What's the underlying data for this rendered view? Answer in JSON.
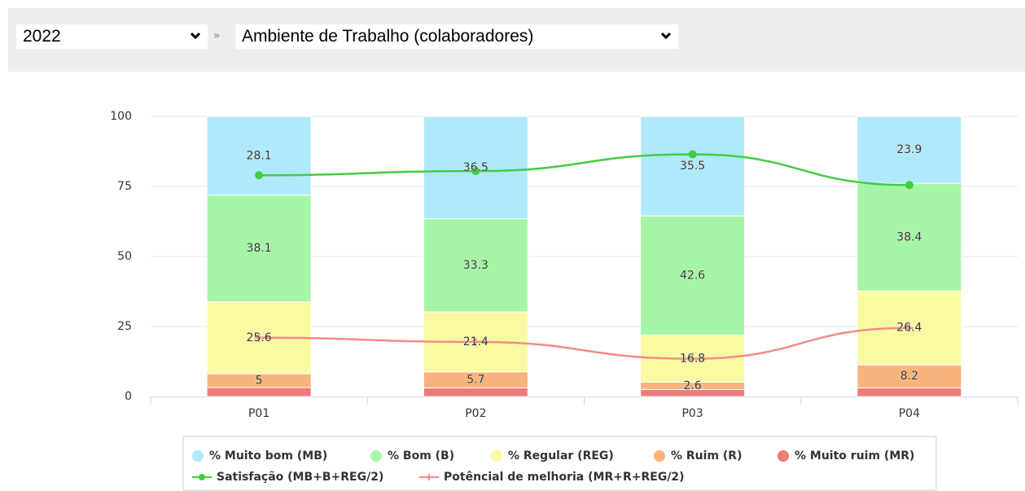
{
  "filters": {
    "year": "2022",
    "separator": "»",
    "survey": "Ambiente de Trabalho (colaboradores)"
  },
  "chart_data": {
    "type": "bar",
    "stacked": true,
    "grid": true,
    "categories": [
      "P01",
      "P02",
      "P03",
      "P04"
    ],
    "ylim": [
      0,
      100
    ],
    "yticks": [
      0,
      25,
      50,
      75,
      100
    ],
    "series": [
      {
        "name": "% Muito ruim (MR)",
        "color": "#ee7b7b",
        "values": [
          3.2,
          3.1,
          2.5,
          3.1
        ],
        "show_labels": false
      },
      {
        "name": "% Ruim (R)",
        "color": "#f8b47c",
        "values": [
          5,
          5.7,
          2.6,
          8.2
        ],
        "show_labels": true
      },
      {
        "name": "% Regular (REG)",
        "color": "#fafaa2",
        "values": [
          25.6,
          21.4,
          16.8,
          26.4
        ],
        "show_labels": true
      },
      {
        "name": "% Bom (B)",
        "color": "#a6f5a6",
        "values": [
          38.1,
          33.3,
          42.6,
          38.4
        ],
        "show_labels": true
      },
      {
        "name": "% Muito bom (MB)",
        "color": "#b0e9fb",
        "values": [
          28.1,
          36.5,
          35.5,
          23.9
        ],
        "show_labels": true
      },
      {
        "name": "Satisfação (MB+B+REG/2)",
        "type": "line",
        "color": "#44cc44",
        "values": [
          79.0,
          80.5,
          86.5,
          75.5
        ]
      },
      {
        "name": "Potêncial de melhoria (MR+R+REG/2)",
        "type": "line",
        "color": "#f58a8a",
        "values": [
          21.0,
          19.5,
          13.5,
          24.5
        ]
      }
    ]
  }
}
